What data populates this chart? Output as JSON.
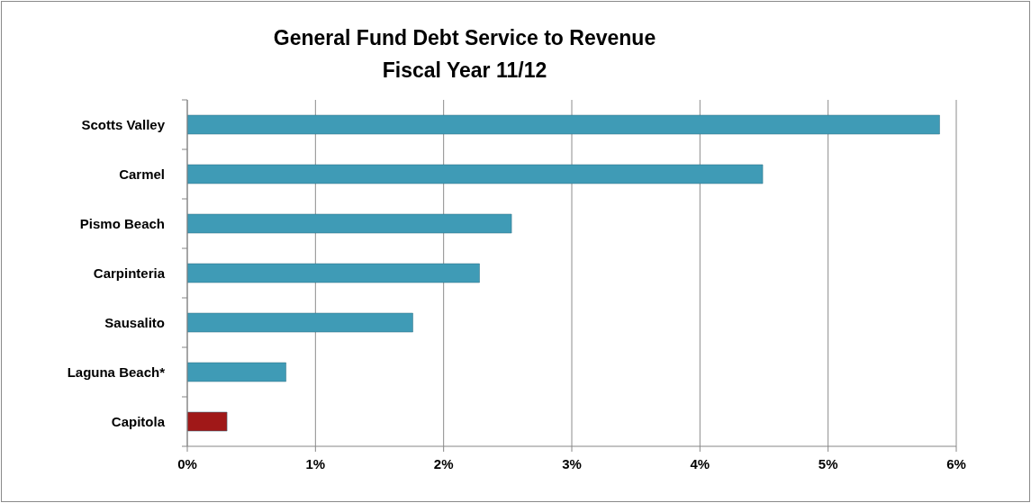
{
  "chart_data": {
    "type": "bar",
    "orientation": "horizontal",
    "title": "General Fund Debt Service to Revenue",
    "subtitle": "Fiscal Year 11/12",
    "categories": [
      "Scotts Valley",
      "Carmel",
      "Pismo Beach",
      "Carpinteria",
      "Sausalito",
      "Laguna Beach*",
      "Capitola"
    ],
    "values": [
      5.87,
      4.49,
      2.53,
      2.28,
      1.76,
      0.77,
      0.31
    ],
    "colors": [
      "#3f9bb6",
      "#3f9bb6",
      "#3f9bb6",
      "#3f9bb6",
      "#3f9bb6",
      "#3f9bb6",
      "#a01818"
    ],
    "xlim": [
      0,
      6
    ],
    "xticks": [
      {
        "value": 0,
        "label": "0%"
      },
      {
        "value": 1,
        "label": "1%"
      },
      {
        "value": 2,
        "label": "2%"
      },
      {
        "value": 3,
        "label": "3%"
      },
      {
        "value": 4,
        "label": "4%"
      },
      {
        "value": 5,
        "label": "5%"
      },
      {
        "value": 6,
        "label": "6%"
      }
    ],
    "grid": "x"
  }
}
